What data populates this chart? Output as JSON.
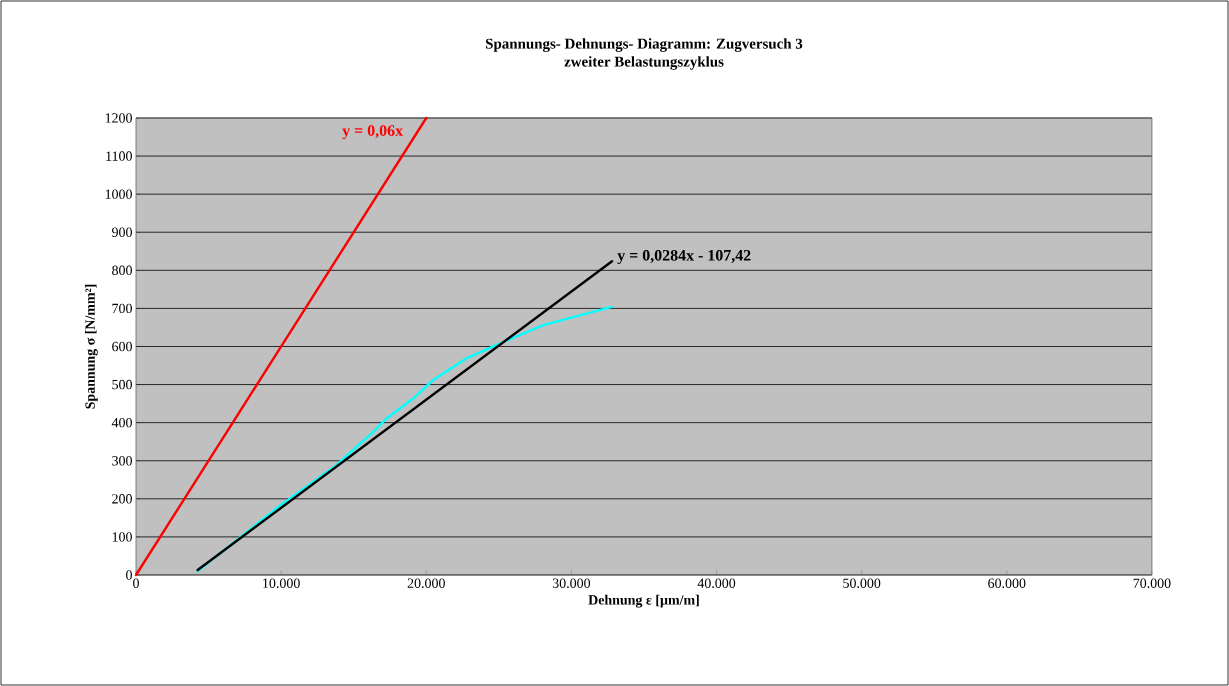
{
  "chart_data": {
    "type": "line",
    "title": "Spannungs- Dehnungs- Diagramm: Zugversuch 3",
    "subtitle": "zweiter Belastungszyklus",
    "xlabel": "Dehnung ε [µm/m]",
    "ylabel": "Spannung σ [N/mm²]",
    "series": [
      {
        "color": "#00ffff",
        "x": [
          4250,
          9690,
          13820,
          16350,
          17270,
          19110,
          20480,
          22780,
          25080,
          28060,
          32780
        ],
        "values": [
          10,
          175,
          289,
          376,
          411,
          464,
          512,
          569,
          608,
          656,
          704
        ]
      },
      {
        "color": "#ff0000",
        "x": [
          0,
          20000
        ],
        "values": [
          0,
          1200
        ]
      },
      {
        "color": "#000000",
        "x": [
          4250,
          32800
        ],
        "values": [
          13,
          824
        ]
      }
    ],
    "annotations": [
      "y = 0,06x",
      "y = 0,0284x - 107,42"
    ],
    "xlim": [
      0,
      70000
    ],
    "xticks": [
      0,
      {
        "value": 10000,
        "label": "10.000"
      },
      {
        "value": 20000,
        "label": "20.000"
      },
      {
        "value": 30000,
        "label": "30.000"
      },
      {
        "value": 40000,
        "label": "40.000"
      },
      {
        "value": 50000,
        "label": "50.000"
      },
      {
        "value": 60000,
        "label": "60.000"
      },
      {
        "value": 70000,
        "label": "70.000"
      }
    ],
    "ylim": [
      0,
      1200
    ],
    "yticks": [
      0,
      100,
      200,
      300,
      400,
      500,
      600,
      700,
      800,
      900,
      1000,
      1100,
      1200
    ],
    "grid": "y",
    "marker": "none",
    "line_style": "solid"
  }
}
